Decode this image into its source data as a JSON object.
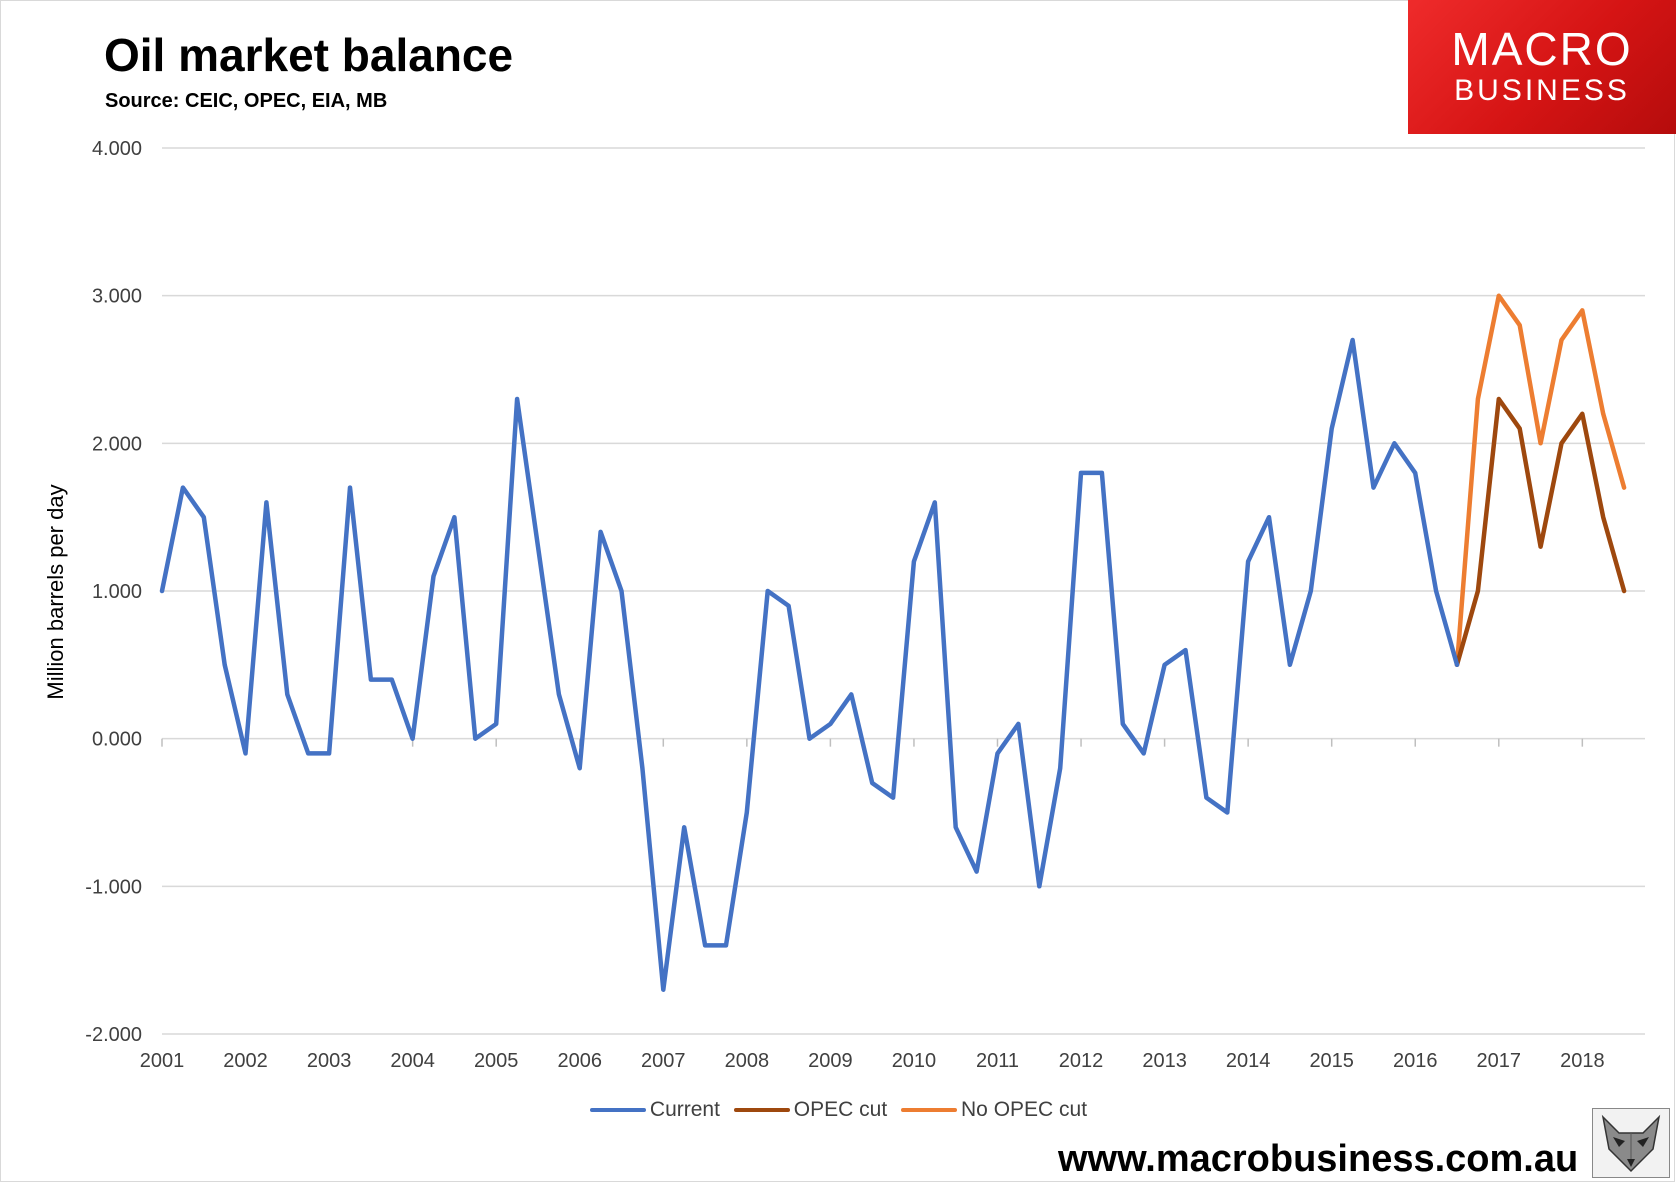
{
  "header": {
    "title": "Oil market balance",
    "subtitle": "Source: CEIC, OPEC, EIA, MB"
  },
  "logo": {
    "line1": "MACRO",
    "line2": "BUSINESS",
    "color": "#e21b1b"
  },
  "footer": {
    "url": "www.macrobusiness.com.au",
    "badge_icon": "fox-head-icon"
  },
  "chart_data": {
    "type": "line",
    "ylabel": "Million barrels per day",
    "xlabel": "",
    "ylim": [
      -2.0,
      4.0
    ],
    "yticks": [
      "-2.000",
      "-1.000",
      "0.000",
      "1.000",
      "2.000",
      "3.000",
      "4.000"
    ],
    "xticks": [
      "2001",
      "2002",
      "2003",
      "2004",
      "2005",
      "2006",
      "2007",
      "2008",
      "2009",
      "2010",
      "2011",
      "2012",
      "2013",
      "2014",
      "2015",
      "2016",
      "2017",
      "2018"
    ],
    "frequency": "quarterly",
    "grid": "horizontal",
    "legend_position": "bottom",
    "series": [
      {
        "name": "Current",
        "color": "#4472c4",
        "start": "2001 Q1",
        "values": [
          1.0,
          1.7,
          1.5,
          0.5,
          -0.1,
          1.6,
          0.3,
          -0.1,
          -0.1,
          1.7,
          0.4,
          0.4,
          0.0,
          1.1,
          1.5,
          0.0,
          0.1,
          2.3,
          1.3,
          0.3,
          -0.2,
          1.4,
          1.0,
          -0.2,
          -1.7,
          -0.6,
          -1.4,
          -1.4,
          -0.5,
          1.0,
          0.9,
          0.0,
          0.1,
          0.3,
          -0.3,
          -0.4,
          1.2,
          1.6,
          -0.6,
          -0.9,
          -0.1,
          0.1,
          -1.0,
          -0.2,
          1.8,
          1.8,
          0.1,
          -0.1,
          0.5,
          0.6,
          -0.4,
          -0.5,
          1.2,
          1.5,
          0.5,
          1.0,
          2.1,
          2.7,
          1.7,
          2.0,
          1.8,
          1.0,
          0.5
        ]
      },
      {
        "name": "OPEC cut",
        "color": "#9e480e",
        "start": "2016 Q3",
        "values": [
          0.5,
          1.0,
          2.3,
          2.1,
          1.3,
          2.0,
          2.2,
          1.5,
          1.0
        ]
      },
      {
        "name": "No OPEC cut",
        "color": "#ed7d31",
        "start": "2016 Q3",
        "values": [
          0.5,
          2.3,
          3.0,
          2.8,
          2.0,
          2.7,
          2.9,
          2.2,
          1.7
        ]
      }
    ]
  }
}
